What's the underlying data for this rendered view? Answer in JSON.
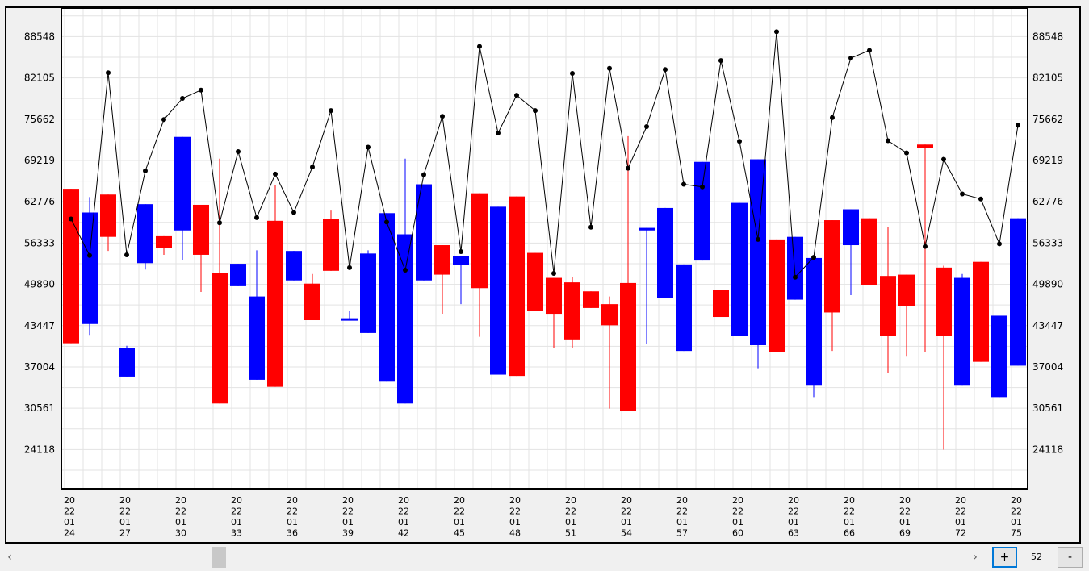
{
  "chart_data": {
    "type": "candlestick",
    "y_ticks": [
      24118,
      30561,
      37004,
      43447,
      49890,
      56333,
      62776,
      69219,
      75662,
      82105,
      88548
    ],
    "ylim": [
      18000,
      93000
    ],
    "x_labels": [
      [
        "20",
        "22",
        "01",
        "24"
      ],
      [
        "20",
        "22",
        "01",
        "27"
      ],
      [
        "20",
        "22",
        "01",
        "30"
      ],
      [
        "20",
        "22",
        "01",
        "33"
      ],
      [
        "20",
        "22",
        "01",
        "36"
      ],
      [
        "20",
        "22",
        "01",
        "39"
      ],
      [
        "20",
        "22",
        "01",
        "42"
      ],
      [
        "20",
        "22",
        "01",
        "45"
      ],
      [
        "20",
        "22",
        "01",
        "48"
      ],
      [
        "20",
        "22",
        "01",
        "51"
      ],
      [
        "20",
        "22",
        "01",
        "54"
      ],
      [
        "20",
        "22",
        "01",
        "57"
      ],
      [
        "20",
        "22",
        "01",
        "60"
      ],
      [
        "20",
        "22",
        "01",
        "63"
      ],
      [
        "20",
        "22",
        "01",
        "66"
      ],
      [
        "20",
        "22",
        "01",
        "69"
      ],
      [
        "20",
        "22",
        "01",
        "72"
      ],
      [
        "20",
        "22",
        "01",
        "75"
      ]
    ],
    "colors": {
      "up": "#ff0000",
      "down": "#0000ff",
      "line": "#000000",
      "grid": "#e3e3e3"
    },
    "candles": [
      {
        "color": "up",
        "open": 40700,
        "close": 64800,
        "high": 64800,
        "low": 40700
      },
      {
        "color": "down",
        "open": 61100,
        "close": 43700,
        "high": 63500,
        "low": 42000
      },
      {
        "color": "up",
        "open": 57300,
        "close": 63900,
        "high": 63900,
        "low": 55100
      },
      {
        "color": "down",
        "open": 40000,
        "close": 35500,
        "high": 40300,
        "low": 35500
      },
      {
        "color": "down",
        "open": 62400,
        "close": 53200,
        "high": 62400,
        "low": 52200
      },
      {
        "color": "up",
        "open": 55600,
        "close": 57400,
        "high": 57400,
        "low": 54500
      },
      {
        "color": "down",
        "open": 72900,
        "close": 58300,
        "high": 72900,
        "low": 53700
      },
      {
        "color": "up",
        "open": 54500,
        "close": 62300,
        "high": 62300,
        "low": 48700
      },
      {
        "color": "up",
        "open": 31300,
        "close": 51700,
        "high": 69500,
        "low": 31300
      },
      {
        "color": "down",
        "open": 53100,
        "close": 49600,
        "high": 53100,
        "low": 49600
      },
      {
        "color": "down",
        "open": 48000,
        "close": 35000,
        "high": 55200,
        "low": 35000
      },
      {
        "color": "up",
        "open": 33900,
        "close": 59800,
        "high": 65400,
        "low": 33900
      },
      {
        "color": "down",
        "open": 55100,
        "close": 50500,
        "high": 55100,
        "low": 50500
      },
      {
        "color": "up",
        "open": 44300,
        "close": 50000,
        "high": 51500,
        "low": 44300
      },
      {
        "color": "up",
        "open": 52000,
        "close": 60100,
        "high": 61400,
        "low": 52000
      },
      {
        "color": "down",
        "open": 44600,
        "close": 44300,
        "high": 45800,
        "low": 44300
      },
      {
        "color": "down",
        "open": 54700,
        "close": 42300,
        "high": 55200,
        "low": 42300
      },
      {
        "color": "down",
        "open": 61000,
        "close": 34700,
        "high": 61000,
        "low": 34700
      },
      {
        "color": "down",
        "open": 57700,
        "close": 31300,
        "high": 69500,
        "low": 31300
      },
      {
        "color": "down",
        "open": 65500,
        "close": 50500,
        "high": 65500,
        "low": 50500
      },
      {
        "color": "up",
        "open": 51400,
        "close": 56000,
        "high": 56000,
        "low": 45300
      },
      {
        "color": "down",
        "open": 54300,
        "close": 52900,
        "high": 54300,
        "low": 46800
      },
      {
        "color": "up",
        "open": 49300,
        "close": 64100,
        "high": 64100,
        "low": 41700
      },
      {
        "color": "down",
        "open": 62000,
        "close": 35800,
        "high": 62000,
        "low": 35800
      },
      {
        "color": "up",
        "open": 35600,
        "close": 63600,
        "high": 63600,
        "low": 35600
      },
      {
        "color": "up",
        "open": 45700,
        "close": 54800,
        "high": 54800,
        "low": 45700
      },
      {
        "color": "up",
        "open": 45300,
        "close": 50900,
        "high": 50900,
        "low": 39900
      },
      {
        "color": "up",
        "open": 41300,
        "close": 50200,
        "high": 51000,
        "low": 39900
      },
      {
        "color": "up",
        "open": 46200,
        "close": 48800,
        "high": 48800,
        "low": 46200
      },
      {
        "color": "up",
        "open": 43500,
        "close": 46800,
        "high": 48000,
        "low": 30500
      },
      {
        "color": "up",
        "open": 30100,
        "close": 50100,
        "high": 73000,
        "low": 30100
      },
      {
        "color": "down",
        "open": 58700,
        "close": 58300,
        "high": 58700,
        "low": 40600
      },
      {
        "color": "down",
        "open": 61800,
        "close": 47800,
        "high": 61800,
        "low": 47800
      },
      {
        "color": "down",
        "open": 53000,
        "close": 39500,
        "high": 53000,
        "low": 39500
      },
      {
        "color": "down",
        "open": 69000,
        "close": 53600,
        "high": 69000,
        "low": 53600
      },
      {
        "color": "up",
        "open": 44800,
        "close": 49000,
        "high": 49000,
        "low": 44800
      },
      {
        "color": "down",
        "open": 62600,
        "close": 41800,
        "high": 62600,
        "low": 41800
      },
      {
        "color": "down",
        "open": 69400,
        "close": 40400,
        "high": 69400,
        "low": 36800
      },
      {
        "color": "up",
        "open": 39300,
        "close": 56900,
        "high": 56900,
        "low": 39300
      },
      {
        "color": "down",
        "open": 57300,
        "close": 47500,
        "high": 57300,
        "low": 47500
      },
      {
        "color": "down",
        "open": 54000,
        "close": 34200,
        "high": 54000,
        "low": 32300
      },
      {
        "color": "up",
        "open": 45500,
        "close": 59900,
        "high": 59900,
        "low": 39500
      },
      {
        "color": "down",
        "open": 61600,
        "close": 56000,
        "high": 61600,
        "low": 48200
      },
      {
        "color": "up",
        "open": 49800,
        "close": 60200,
        "high": 60200,
        "low": 49800
      },
      {
        "color": "up",
        "open": 41800,
        "close": 51200,
        "high": 58900,
        "low": 36000
      },
      {
        "color": "up",
        "open": 46500,
        "close": 51400,
        "high": 51400,
        "low": 38600
      },
      {
        "color": "up",
        "open": 71200,
        "close": 71700,
        "high": 71700,
        "low": 39300
      },
      {
        "color": "up",
        "open": 41800,
        "close": 52500,
        "high": 52800,
        "low": 24100
      },
      {
        "color": "down",
        "open": 50900,
        "close": 34200,
        "high": 51500,
        "low": 34200
      },
      {
        "color": "up",
        "open": 37800,
        "close": 53400,
        "high": 53400,
        "low": 37800
      },
      {
        "color": "down",
        "open": 45000,
        "close": 32300,
        "high": 45000,
        "low": 32300
      },
      {
        "color": "down",
        "open": 60200,
        "close": 37200,
        "high": 60200,
        "low": 37200
      }
    ],
    "line_series": [
      60100,
      54400,
      82900,
      54500,
      67600,
      75600,
      78900,
      80200,
      59500,
      70600,
      60300,
      67100,
      61100,
      68200,
      77000,
      52500,
      71300,
      59600,
      52100,
      67000,
      76100,
      55000,
      87000,
      73500,
      79400,
      77000,
      51600,
      82800,
      58800,
      83600,
      68000,
      74500,
      83400,
      65500,
      65100,
      84800,
      72200,
      56900,
      89300,
      51000,
      54100,
      75900,
      85200,
      86400,
      72300,
      70400,
      55800,
      69400,
      64000,
      63200,
      56200,
      74700
    ]
  },
  "controls": {
    "scroll_left": "‹",
    "scroll_right": "›",
    "zoom_in": "+",
    "zoom_value": "52",
    "zoom_out": "-"
  }
}
